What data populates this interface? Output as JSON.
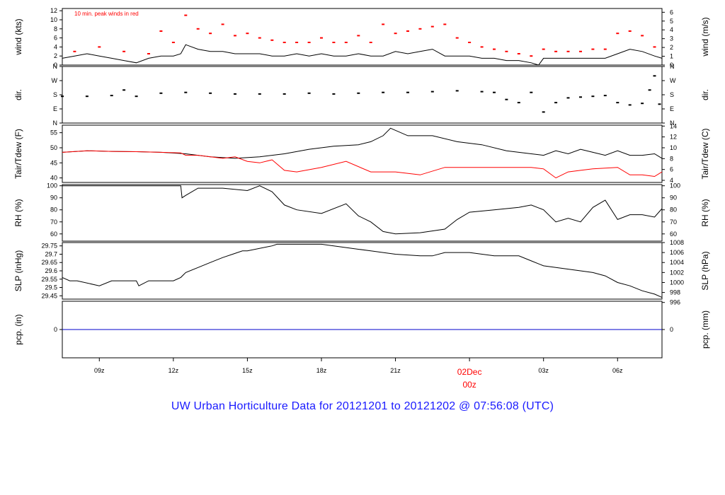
{
  "title": "UW Urban Horticulture Data for 20121201  to  20121202 @ 07:56:08  (UTC)",
  "colors": {
    "line": "#000000",
    "peak": "#ff0000",
    "dew": "#ff0000",
    "pcp": "#0000cc",
    "title": "#1a1aff",
    "date_mark": "#ff0000"
  },
  "chart_data": [
    {
      "type": "line",
      "id": "wind",
      "ylabel_left": "wind (kts)",
      "ylabel_right": "wind (m/s)",
      "annotation": "10 min. peak winds in red",
      "ylim": [
        0,
        12.5
      ],
      "left_ticks": [
        0,
        2,
        4,
        6,
        8,
        10,
        12
      ],
      "right_ticks": [
        {
          "label": "0",
          "at": 0
        },
        {
          "label": "1",
          "at": 1.944
        },
        {
          "label": "2",
          "at": 3.888
        },
        {
          "label": "3",
          "at": 5.832
        },
        {
          "label": "4",
          "at": 7.776
        },
        {
          "label": "5",
          "at": 9.72
        },
        {
          "label": "6",
          "at": 11.664
        }
      ],
      "series": [
        {
          "style": "line",
          "color": "#000000",
          "x": [
            7.5,
            8.0,
            8.5,
            9.0,
            9.5,
            10.0,
            10.5,
            11.0,
            11.5,
            12.0,
            12.3,
            12.5,
            13.0,
            13.5,
            14.0,
            14.5,
            15.0,
            15.5,
            16.0,
            16.5,
            17.0,
            17.5,
            18.0,
            18.5,
            19.0,
            19.5,
            20.0,
            20.5,
            21.0,
            21.5,
            22.0,
            22.5,
            23.0,
            23.5,
            24.0,
            24.5,
            25.0,
            25.5,
            26.0,
            26.5,
            26.8,
            27.0,
            27.5,
            28.0,
            28.5,
            29.0,
            29.5,
            30.0,
            30.5,
            31.0,
            31.5,
            31.8
          ],
          "y": [
            1.5,
            2.0,
            2.5,
            2.0,
            1.5,
            1.0,
            0.5,
            1.5,
            2.0,
            2.0,
            2.5,
            4.5,
            3.5,
            3.0,
            3.0,
            2.5,
            2.5,
            2.5,
            2.0,
            2.0,
            2.5,
            2.0,
            2.5,
            2.0,
            2.0,
            2.5,
            2.0,
            2.0,
            3.0,
            2.5,
            3.0,
            3.5,
            2.0,
            2.0,
            2.0,
            1.5,
            1.5,
            1.0,
            1.0,
            0.5,
            0.0,
            1.5,
            1.5,
            1.5,
            1.5,
            1.5,
            1.5,
            2.5,
            3.5,
            3.0,
            2.0,
            1.5
          ]
        },
        {
          "style": "points",
          "color": "#ff0000",
          "x": [
            8.0,
            9.0,
            10.0,
            11.0,
            11.5,
            12.0,
            12.5,
            13.0,
            13.5,
            14.0,
            14.5,
            15.0,
            15.5,
            16.0,
            16.5,
            17.0,
            17.5,
            18.0,
            18.5,
            19.0,
            19.5,
            20.0,
            20.5,
            21.0,
            21.5,
            22.0,
            22.5,
            23.0,
            23.5,
            24.0,
            24.5,
            25.0,
            25.5,
            26.0,
            26.5,
            27.0,
            27.5,
            28.0,
            28.5,
            29.0,
            29.5,
            30.0,
            30.5,
            31.0,
            31.5
          ],
          "y": [
            3.0,
            4.0,
            3.0,
            2.5,
            7.5,
            5.0,
            11.0,
            8.0,
            7.0,
            9.0,
            6.5,
            7.0,
            6.0,
            5.5,
            5.0,
            5.0,
            5.0,
            6.0,
            5.0,
            5.0,
            6.5,
            5.0,
            9.0,
            7.0,
            7.5,
            8.0,
            8.5,
            9.0,
            6.0,
            5.0,
            4.0,
            3.5,
            3.0,
            2.5,
            2.0,
            3.5,
            3.0,
            3.0,
            3.0,
            3.5,
            3.5,
            7.0,
            7.5,
            6.5,
            4.0
          ]
        }
      ]
    },
    {
      "type": "scatter",
      "id": "dir",
      "ylabel_left": "dir.",
      "ylabel_right": "dir.",
      "ylim": [
        0,
        360
      ],
      "left_ticks": [
        {
          "label": "N",
          "at": 0
        },
        {
          "label": "E",
          "at": 90
        },
        {
          "label": "S",
          "at": 180
        },
        {
          "label": "W",
          "at": 270
        },
        {
          "label": "N",
          "at": 360
        }
      ],
      "right_ticks": [
        {
          "label": "N",
          "at": 0
        },
        {
          "label": "E",
          "at": 90
        },
        {
          "label": "S",
          "at": 180
        },
        {
          "label": "W",
          "at": 270
        },
        {
          "label": "N",
          "at": 360
        }
      ],
      "series": [
        {
          "style": "points",
          "color": "#000000",
          "x": [
            7.5,
            8.5,
            9.5,
            10.0,
            10.5,
            11.5,
            12.5,
            13.5,
            14.5,
            15.5,
            16.5,
            17.5,
            18.5,
            19.5,
            20.5,
            21.5,
            22.5,
            23.5,
            24.5,
            25.0,
            25.5,
            26.0,
            26.5,
            27.0,
            27.5,
            28.0,
            28.5,
            29.0,
            29.5,
            30.0,
            30.5,
            31.0,
            31.3,
            31.5,
            31.7
          ],
          "y": [
            170,
            170,
            175,
            210,
            170,
            190,
            195,
            190,
            185,
            185,
            185,
            190,
            185,
            190,
            195,
            195,
            200,
            205,
            200,
            195,
            150,
            130,
            195,
            70,
            130,
            160,
            165,
            170,
            175,
            130,
            115,
            125,
            210,
            300,
            120
          ]
        }
      ]
    },
    {
      "type": "line",
      "id": "temp",
      "ylabel_left": "Tair/Tdew (F)",
      "ylabel_right": "Tair/Tdew (C)",
      "ylim": [
        38.5,
        57.5
      ],
      "left_ticks": [
        40,
        45,
        50,
        55
      ],
      "right_ticks": [
        {
          "label": "4",
          "at": 39.2
        },
        {
          "label": "6",
          "at": 42.8
        },
        {
          "label": "8",
          "at": 46.4
        },
        {
          "label": "10",
          "at": 50.0
        },
        {
          "label": "12",
          "at": 53.6
        },
        {
          "label": "14",
          "at": 57.2
        }
      ],
      "series": [
        {
          "name": "Tair",
          "style": "line",
          "color": "#000000",
          "x": [
            7.5,
            8.5,
            9.5,
            10.5,
            11.5,
            12.5,
            13.5,
            14.5,
            15.5,
            16.5,
            17.5,
            18.5,
            19.5,
            20.0,
            20.5,
            20.8,
            21.5,
            22.5,
            23.5,
            24.5,
            25.5,
            26.5,
            27.0,
            27.5,
            28.0,
            28.5,
            29.0,
            29.5,
            30.0,
            30.5,
            31.0,
            31.5,
            31.8
          ],
          "y": [
            48.5,
            49.0,
            48.8,
            48.7,
            48.5,
            48.0,
            47.0,
            46.5,
            47.0,
            48.0,
            49.5,
            50.5,
            51.0,
            52.0,
            54.0,
            56.5,
            54.0,
            54.0,
            52.0,
            51.0,
            49.0,
            48.0,
            47.5,
            49.0,
            48.0,
            49.5,
            48.5,
            47.5,
            49.0,
            47.5,
            47.5,
            48.0,
            46.5
          ]
        },
        {
          "name": "Tdew",
          "style": "line",
          "color": "#ff0000",
          "x": [
            7.5,
            8.5,
            9.5,
            10.5,
            11.5,
            12.3,
            12.5,
            13.0,
            14.0,
            14.5,
            15.0,
            15.5,
            16.0,
            16.5,
            17.0,
            18.0,
            19.0,
            20.0,
            21.0,
            22.0,
            23.0,
            24.0,
            25.0,
            26.0,
            26.5,
            27.0,
            27.5,
            28.0,
            28.5,
            29.0,
            30.0,
            30.5,
            31.0,
            31.5,
            31.8
          ],
          "y": [
            48.5,
            49.0,
            48.8,
            48.7,
            48.5,
            48.3,
            47.5,
            47.5,
            46.5,
            47.0,
            45.5,
            45.0,
            46.0,
            42.5,
            42.0,
            43.5,
            45.5,
            42.0,
            42.0,
            41.0,
            43.5,
            43.5,
            43.5,
            43.5,
            43.5,
            43.0,
            40.0,
            42.0,
            42.5,
            43.0,
            43.5,
            41.0,
            41.0,
            40.5,
            42.0
          ]
        }
      ]
    },
    {
      "type": "line",
      "id": "rh",
      "ylabel_left": "RH (%)",
      "ylabel_right": "RH (%)",
      "ylim": [
        54,
        101
      ],
      "left_ticks": [
        60,
        70,
        80,
        90,
        100
      ],
      "right_ticks": [
        {
          "label": "60",
          "at": 60
        },
        {
          "label": "70",
          "at": 70
        },
        {
          "label": "80",
          "at": 80
        },
        {
          "label": "90",
          "at": 90
        },
        {
          "label": "100",
          "at": 100
        }
      ],
      "series": [
        {
          "style": "line",
          "color": "#000000",
          "x": [
            7.5,
            8.5,
            9.5,
            10.5,
            11.5,
            12.3,
            12.35,
            12.5,
            13.0,
            14.0,
            15.0,
            15.5,
            16.0,
            16.5,
            17.0,
            18.0,
            19.0,
            19.5,
            20.0,
            20.5,
            21.0,
            22.0,
            23.0,
            23.5,
            24.0,
            25.0,
            26.0,
            26.5,
            27.0,
            27.5,
            28.0,
            28.5,
            29.0,
            29.5,
            30.0,
            30.5,
            31.0,
            31.5,
            31.8
          ],
          "y": [
            100,
            100,
            100,
            100,
            100,
            100,
            90,
            92,
            98,
            98,
            96,
            100,
            95,
            84,
            80,
            77,
            85,
            75,
            70,
            62,
            60,
            61,
            64,
            72,
            78,
            80,
            82,
            84,
            80,
            70,
            73,
            70,
            82,
            88,
            72,
            76,
            76,
            74,
            81
          ]
        }
      ]
    },
    {
      "type": "line",
      "id": "slp",
      "ylabel_left": "SLP (inHg)",
      "ylabel_right": "SLP (hPa)",
      "ylim": [
        29.43,
        29.77
      ],
      "left_ticks": [
        29.45,
        29.5,
        29.55,
        29.6,
        29.65,
        29.7,
        29.75
      ],
      "right_ticks": [
        {
          "label": "996",
          "at": 29.41
        },
        {
          "label": "998",
          "at": 29.47
        },
        {
          "label": "1000",
          "at": 29.53
        },
        {
          "label": "1002",
          "at": 29.59
        },
        {
          "label": "1004",
          "at": 29.65
        },
        {
          "label": "1006",
          "at": 29.71
        },
        {
          "label": "1008",
          "at": 29.77
        }
      ],
      "series": [
        {
          "style": "line",
          "color": "#000000",
          "x": [
            7.5,
            7.8,
            8.1,
            9.0,
            9.5,
            10.5,
            10.6,
            11.0,
            12.0,
            12.3,
            12.5,
            13.0,
            13.5,
            14.0,
            14.4,
            14.8,
            15.0,
            16.0,
            16.2,
            17.0,
            18.0,
            19.0,
            20.0,
            21.0,
            22.0,
            22.5,
            23.0,
            24.0,
            25.0,
            26.0,
            26.5,
            27.0,
            28.0,
            29.0,
            29.5,
            30.0,
            30.5,
            31.0,
            31.5,
            31.8
          ],
          "y": [
            29.56,
            29.54,
            29.54,
            29.51,
            29.54,
            29.54,
            29.51,
            29.54,
            29.54,
            29.56,
            29.59,
            29.62,
            29.65,
            29.68,
            29.7,
            29.72,
            29.72,
            29.75,
            29.76,
            29.76,
            29.76,
            29.74,
            29.72,
            29.7,
            29.69,
            29.69,
            29.71,
            29.71,
            29.69,
            29.69,
            29.66,
            29.63,
            29.61,
            29.59,
            29.57,
            29.53,
            29.51,
            29.48,
            29.46,
            29.44
          ]
        }
      ]
    },
    {
      "type": "line",
      "id": "pcp",
      "ylabel_left": "pcp. (in)",
      "ylabel_right": "pcp. (mm)",
      "ylim": [
        -0.5,
        0.5
      ],
      "left_ticks": [
        0
      ],
      "right_ticks": [
        {
          "label": "0",
          "at": 0
        }
      ],
      "series": [
        {
          "style": "line",
          "color": "#0000cc",
          "x": [
            7.5,
            31.8
          ],
          "y": [
            0,
            0
          ]
        }
      ]
    }
  ],
  "x_axis": {
    "xlim": [
      7.5,
      31.8
    ],
    "ticks": [
      {
        "label": "09z",
        "at": 9
      },
      {
        "label": "12z",
        "at": 12
      },
      {
        "label": "15z",
        "at": 15
      },
      {
        "label": "18z",
        "at": 18
      },
      {
        "label": "21z",
        "at": 21
      },
      {
        "label": "03z",
        "at": 27
      },
      {
        "label": "06z",
        "at": 30
      }
    ],
    "date_mark": {
      "at": 24,
      "date": "02Dec",
      "hour": "00z"
    }
  }
}
